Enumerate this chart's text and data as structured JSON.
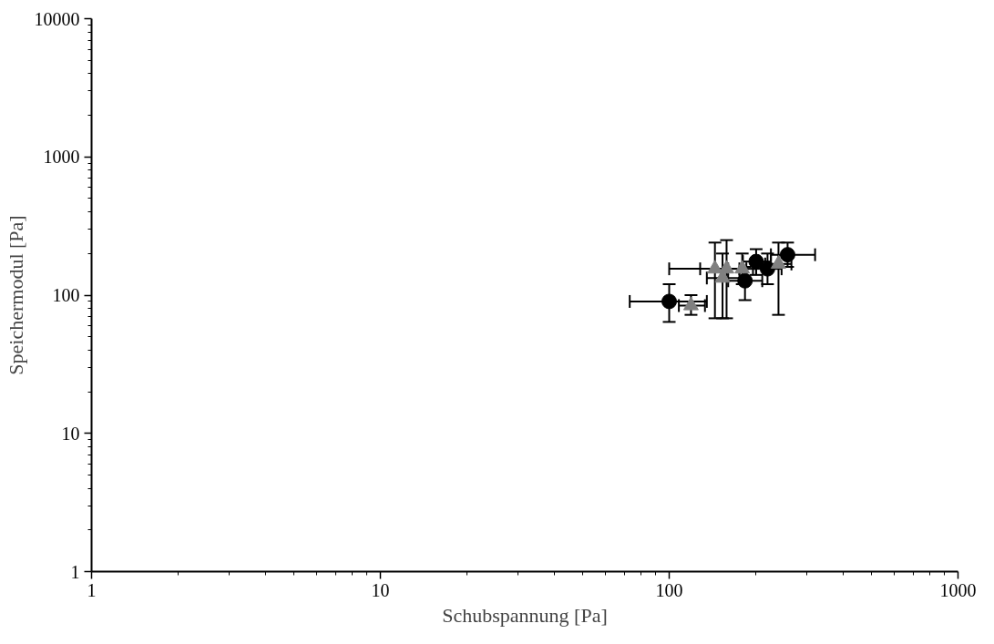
{
  "chart_data": {
    "type": "scatter",
    "xlabel": "Schubspannung [Pa]",
    "ylabel": "Speichermodul [Pa]",
    "log": "xy",
    "grid": false,
    "xlim": [
      1,
      1000
    ],
    "ylim": [
      1,
      10000
    ],
    "xticks": [
      1,
      10,
      100,
      1000
    ],
    "yticks": [
      1,
      10,
      100,
      1000,
      10000
    ],
    "series": [
      {
        "color": "#000000",
        "marker": "circle",
        "x": [
          100,
          183,
          200,
          219,
          240,
          257
        ],
        "values": [
          90,
          127,
          175,
          155,
          null,
          196
        ],
        "errors": [
          [
            64,
            120
          ],
          [
            92,
            160
          ],
          [
            140,
            215
          ],
          [
            120,
            200
          ],
          null,
          [
            160,
            240
          ]
        ],
        "xerrors": [
          [
            73,
            135
          ],
          [
            160,
            210
          ],
          [
            180,
            225
          ],
          [
            195,
            245
          ],
          null,
          [
            225,
            320
          ]
        ]
      },
      {
        "color": "#808080",
        "marker": "triangle",
        "x": [
          119,
          144,
          153,
          158,
          179,
          239
        ],
        "values": [
          84,
          155,
          133,
          155,
          155,
          168
        ],
        "errors": [
          [
            72,
            100
          ],
          [
            68,
            240
          ],
          [
            68,
            200
          ],
          [
            68,
            250
          ],
          [
            120,
            200
          ],
          [
            72,
            240
          ]
        ],
        "xerrors": [
          [
            108,
            133
          ],
          [
            100,
            175
          ],
          [
            135,
            175
          ],
          [
            128,
            185
          ],
          [
            160,
            200
          ],
          [
            215,
            265
          ]
        ]
      }
    ]
  }
}
